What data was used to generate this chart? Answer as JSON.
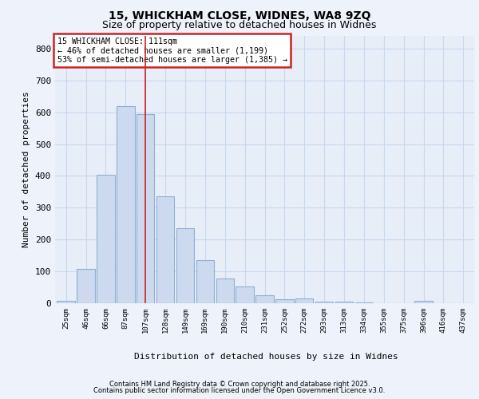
{
  "title_line1": "15, WHICKHAM CLOSE, WIDNES, WA8 9ZQ",
  "title_line2": "Size of property relative to detached houses in Widnes",
  "xlabel": "Distribution of detached houses by size in Widnes",
  "ylabel": "Number of detached properties",
  "categories": [
    "25sqm",
    "46sqm",
    "66sqm",
    "87sqm",
    "107sqm",
    "128sqm",
    "149sqm",
    "169sqm",
    "190sqm",
    "210sqm",
    "231sqm",
    "252sqm",
    "272sqm",
    "293sqm",
    "313sqm",
    "334sqm",
    "355sqm",
    "375sqm",
    "396sqm",
    "416sqm",
    "437sqm"
  ],
  "values": [
    8,
    107,
    404,
    620,
    595,
    335,
    235,
    135,
    78,
    52,
    25,
    12,
    15,
    4,
    4,
    2,
    0,
    0,
    8,
    0,
    0
  ],
  "bar_color": "#ccd9ee",
  "bar_edge_color": "#8eafd4",
  "grid_color": "#c8d8ee",
  "annotation_box_text": "15 WHICKHAM CLOSE: 111sqm\n← 46% of detached houses are smaller (1,199)\n53% of semi-detached houses are larger (1,385) →",
  "annotation_box_facecolor": "#ffffff",
  "annotation_box_edge_color": "#cc2222",
  "vline_x_index": 4.0,
  "ylim": [
    0,
    840
  ],
  "yticks": [
    0,
    100,
    200,
    300,
    400,
    500,
    600,
    700,
    800
  ],
  "footer_line1": "Contains HM Land Registry data © Crown copyright and database right 2025.",
  "footer_line2": "Contains public sector information licensed under the Open Government Licence v3.0.",
  "background_color": "#eef2fa",
  "plot_bg_color": "#e8eef8"
}
